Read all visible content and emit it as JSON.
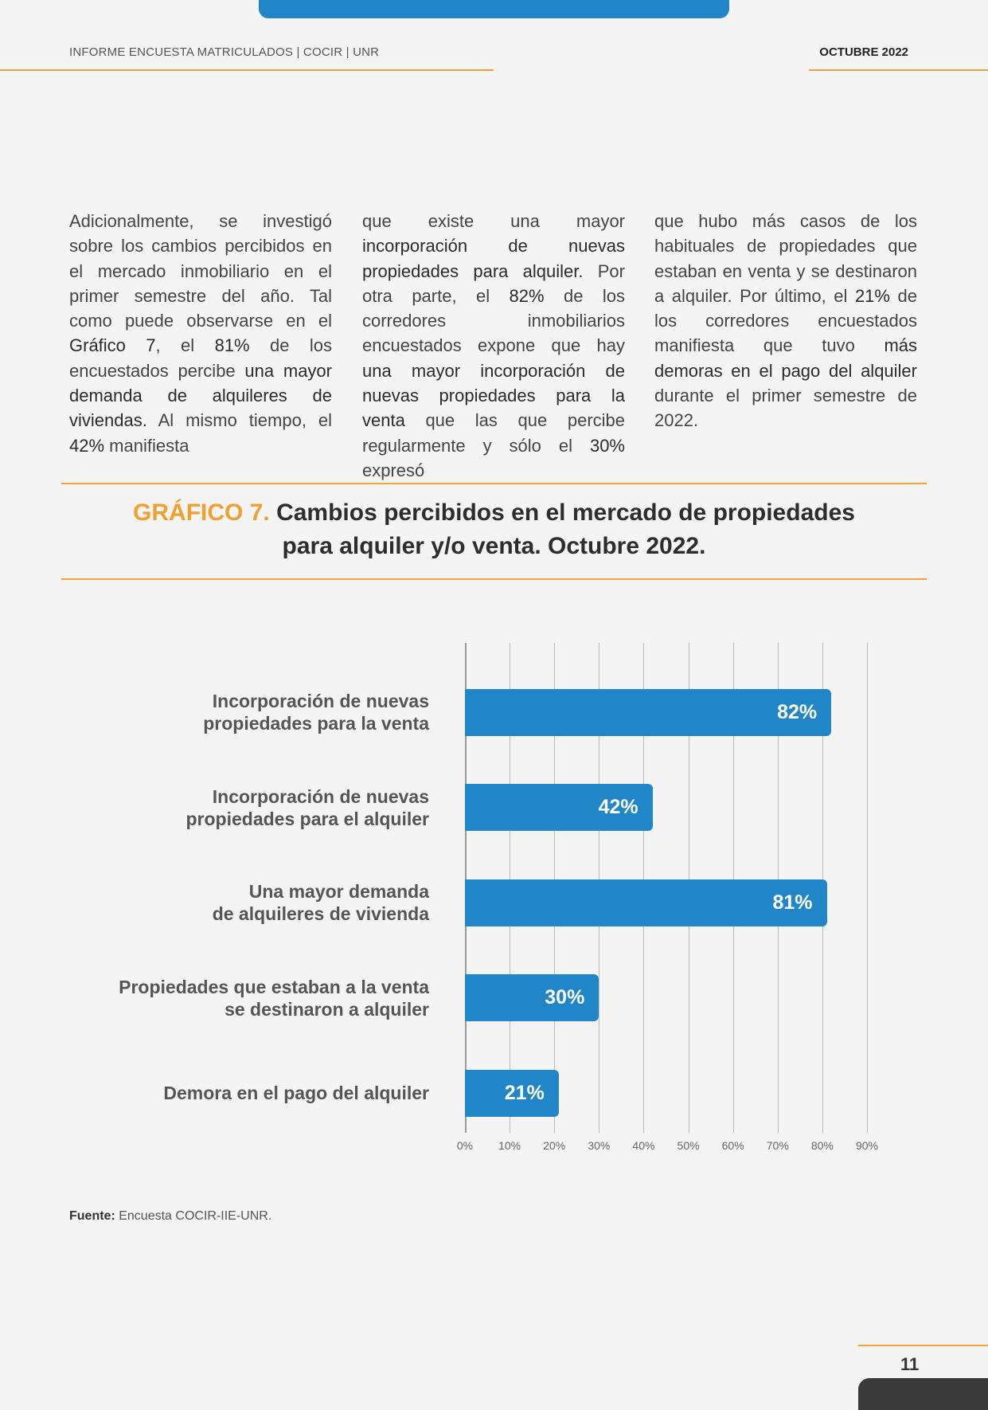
{
  "header": {
    "report_title": "INFORME ENCUESTA MATRICULADOS | COCIR | UNR",
    "date": "OCTUBRE 2022"
  },
  "body": {
    "col1": [
      {
        "t": "Adicionalmente, se investigó sobre los cambios percibidos en el mercado inmobiliario en el primer semestre del año. Tal como puede observarse en el "
      },
      {
        "t": "Gráfico 7",
        "b": true
      },
      {
        "t": ", el "
      },
      {
        "t": "81%",
        "b": true
      },
      {
        "t": " de los encuestados percibe "
      },
      {
        "t": "una mayor demanda de alquileres de viviendas.",
        "b": true
      },
      {
        "t": " Al mismo tiempo, el "
      },
      {
        "t": "42%",
        "b": true
      },
      {
        "t": " manifiesta"
      }
    ],
    "col2": [
      {
        "t": "que existe una mayor "
      },
      {
        "t": "incorporación de nuevas propiedades para alquiler.",
        "b": true
      },
      {
        "t": " Por otra parte, el "
      },
      {
        "t": "82%",
        "b": true
      },
      {
        "t": " de los corredores inmobiliarios encuestados expone que hay "
      },
      {
        "t": "una mayor incorporación de nuevas propiedades para la venta",
        "b": true
      },
      {
        "t": " que las que percibe regularmente y sólo el "
      },
      {
        "t": "30%",
        "b": true
      },
      {
        "t": " expresó"
      }
    ],
    "col3": [
      {
        "t": "que hubo más casos de los habituales de propiedades que estaban en venta y se destinaron a alquiler. Por último, el "
      },
      {
        "t": "21%",
        "b": true
      },
      {
        "t": " de los corredores encuestados manifiesta que tuvo "
      },
      {
        "t": "más demoras en el pago del alquiler",
        "b": true
      },
      {
        "t": " durante el primer semestre de 2022."
      }
    ]
  },
  "figure": {
    "label": "GRÁFICO 7.",
    "title_line1": "Cambios percibidos en el mercado de propiedades",
    "title_line2": "para alquiler y/o venta. Octubre 2022."
  },
  "chart_data": {
    "type": "bar",
    "orientation": "horizontal",
    "categories": [
      [
        "Incorporación de nuevas",
        "propiedades para la venta"
      ],
      [
        "Incorporación de nuevas",
        "propiedades para el alquiler"
      ],
      [
        "Una mayor demanda",
        "de alquileres de vivienda"
      ],
      [
        "Propiedades que estaban a la venta",
        "se destinaron a alquiler"
      ],
      [
        "Demora en el pago del alquiler"
      ]
    ],
    "values": [
      82,
      42,
      81,
      30,
      21
    ],
    "value_labels": [
      "82%",
      "42%",
      "81%",
      "30%",
      "21%"
    ],
    "xlim": [
      0,
      90
    ],
    "xticks": [
      "0%",
      "10%",
      "20%",
      "30%",
      "40%",
      "50%",
      "60%",
      "70%",
      "80%",
      "90%"
    ],
    "grid": true,
    "bar_color": "#2186c8"
  },
  "source": {
    "label": "Fuente:",
    "text": " Encuesta COCIR-IIE-UNR."
  },
  "footer": {
    "page": "11"
  },
  "colors": {
    "accent": "#f3a23a",
    "brand_blue": "#2186c8"
  }
}
